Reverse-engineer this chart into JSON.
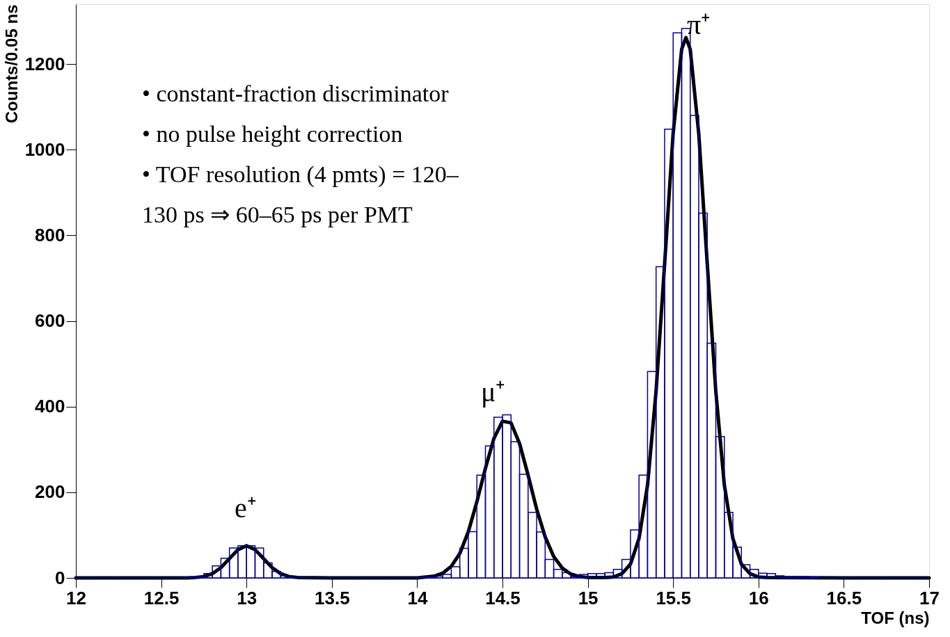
{
  "chart_data": {
    "type": "histogram",
    "xlabel": "TOF (ns)",
    "ylabel": "Counts/0.05 ns",
    "xlim": [
      12,
      17
    ],
    "xticks": [
      12,
      12.5,
      13,
      13.5,
      14,
      14.5,
      15,
      15.5,
      16,
      16.5,
      17
    ],
    "ylim": [
      0,
      1340
    ],
    "yticks": [
      0,
      200,
      400,
      600,
      800,
      1000,
      1200
    ],
    "grid": false,
    "bins": [
      12,
      12.05,
      12.1,
      12.15,
      12.2,
      12.25,
      12.3,
      12.35,
      12.4,
      12.45,
      12.5,
      12.55,
      12.6,
      12.65,
      12.7,
      12.75,
      12.8,
      12.85,
      12.9,
      12.95,
      13,
      13.05,
      13.1,
      13.15,
      13.2,
      13.25,
      13.3,
      13.35,
      13.4,
      13.45,
      13.5,
      13.55,
      13.6,
      13.65,
      13.7,
      13.75,
      13.8,
      13.85,
      13.9,
      13.95,
      14,
      14.05,
      14.1,
      14.15,
      14.2,
      14.25,
      14.3,
      14.35,
      14.4,
      14.45,
      14.5,
      14.55,
      14.6,
      14.65,
      14.7,
      14.75,
      14.8,
      14.85,
      14.9,
      14.95,
      15,
      15.05,
      15.1,
      15.15,
      15.2,
      15.25,
      15.3,
      15.35,
      15.4,
      15.45,
      15.5,
      15.55,
      15.6,
      15.65,
      15.7,
      15.75,
      15.8,
      15.85,
      15.9,
      15.95,
      16,
      16.05,
      16.1,
      16.15,
      16.2,
      16.25,
      16.3,
      16.35,
      16.4,
      16.45,
      16.5,
      16.55,
      16.6,
      16.65,
      16.7,
      16.75,
      16.8,
      16.85,
      16.9,
      16.95,
      17
    ],
    "series": [
      {
        "color": "#000099",
        "values": [
          0,
          0,
          0,
          0,
          0,
          0,
          0,
          0,
          0,
          0,
          0,
          0,
          0,
          1,
          3,
          10,
          28,
          46,
          70,
          75,
          75,
          70,
          35,
          15,
          5,
          1,
          0,
          0,
          0,
          0,
          0,
          0,
          0,
          0,
          0,
          0,
          0,
          0,
          0,
          0,
          1,
          2,
          4,
          8,
          26,
          69,
          108,
          240,
          308,
          375,
          381,
          318,
          242,
          153,
          107,
          43,
          20,
          12,
          3,
          8,
          10,
          10,
          12,
          20,
          43,
          112,
          240,
          482,
          727,
          1048,
          1273,
          1283,
          1080,
          852,
          548,
          330,
          153,
          72,
          31,
          20,
          11,
          10,
          5,
          3,
          3,
          3,
          2,
          0,
          0,
          0,
          0,
          0,
          0,
          0,
          0,
          0,
          0,
          0,
          0,
          0
        ]
      },
      {
        "type": "line",
        "color": "#000000",
        "x": [
          12,
          12.5,
          12.65,
          12.7,
          12.75,
          12.8,
          12.85,
          12.9,
          12.95,
          13,
          13.05,
          13.1,
          13.15,
          13.2,
          13.25,
          13.3,
          13.5,
          14,
          14.1,
          14.15,
          14.2,
          14.25,
          14.3,
          14.35,
          14.4,
          14.45,
          14.5,
          14.55,
          14.6,
          14.65,
          14.7,
          14.75,
          14.8,
          14.85,
          14.9,
          14.95,
          15,
          15.05,
          15.1,
          15.15,
          15.2,
          15.25,
          15.3,
          15.35,
          15.4,
          15.45,
          15.5,
          15.55,
          15.575,
          15.6,
          15.65,
          15.7,
          15.75,
          15.8,
          15.85,
          15.9,
          15.95,
          16,
          16.05,
          16.5,
          17
        ],
        "values": [
          0,
          0,
          0,
          1,
          3,
          10,
          24,
          45,
          66,
          75,
          66,
          45,
          24,
          10,
          3,
          1,
          0,
          0,
          4,
          11,
          27,
          57,
          108,
          178,
          256,
          326,
          366,
          362,
          314,
          240,
          161,
          96,
          50,
          23,
          9,
          3,
          1,
          1,
          1,
          2,
          10,
          32,
          92,
          217,
          436,
          733,
          1038,
          1235,
          1262,
          1235,
          1038,
          733,
          436,
          217,
          92,
          32,
          10,
          2,
          1,
          0,
          0
        ]
      }
    ],
    "annotations": [
      "e⁺",
      "μ⁺",
      "π⁺",
      "• constant-fraction discriminator",
      "• no pulse height correction",
      "• TOF resolution (4 pmts) = 120–",
      "130 ps ⇒ 60–65 ps per PMT"
    ]
  }
}
